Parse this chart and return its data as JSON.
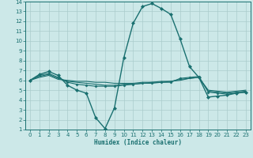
{
  "xlabel": "Humidex (Indice chaleur)",
  "background_color": "#cce8e8",
  "grid_color": "#aacccc",
  "line_color": "#1a7070",
  "xlim": [
    -0.5,
    23.5
  ],
  "ylim": [
    1,
    14
  ],
  "xticks": [
    0,
    1,
    2,
    3,
    4,
    5,
    6,
    7,
    8,
    9,
    10,
    11,
    12,
    13,
    14,
    15,
    16,
    17,
    18,
    19,
    20,
    21,
    22,
    23
  ],
  "yticks": [
    1,
    2,
    3,
    4,
    5,
    6,
    7,
    8,
    9,
    10,
    11,
    12,
    13,
    14
  ],
  "lines": [
    {
      "x": [
        0,
        1,
        2,
        3,
        4,
        5,
        6,
        7,
        8,
        9,
        10,
        11,
        12,
        13,
        14,
        15,
        16,
        17,
        18,
        19,
        20,
        21,
        22,
        23
      ],
      "y": [
        6.0,
        6.6,
        6.9,
        6.5,
        5.5,
        5.0,
        4.7,
        2.2,
        1.1,
        3.2,
        8.3,
        11.8,
        13.5,
        13.8,
        13.3,
        12.7,
        10.2,
        7.4,
        6.3,
        4.3,
        4.4,
        4.5,
        4.7,
        4.8
      ],
      "marker": "D",
      "markersize": 2.0,
      "linewidth": 1.0
    },
    {
      "x": [
        0,
        1,
        2,
        3,
        4,
        5,
        6,
        7,
        8,
        9,
        10,
        11,
        12,
        13,
        14,
        15,
        16,
        17,
        18,
        19,
        20,
        21,
        22,
        23
      ],
      "y": [
        6.0,
        6.5,
        6.7,
        6.3,
        5.8,
        5.6,
        5.5,
        5.4,
        5.4,
        5.4,
        5.5,
        5.6,
        5.7,
        5.7,
        5.8,
        5.8,
        6.2,
        6.3,
        6.4,
        4.8,
        4.7,
        4.6,
        4.7,
        4.8
      ],
      "marker": "D",
      "markersize": 1.5,
      "linewidth": 0.8
    },
    {
      "x": [
        0,
        1,
        2,
        3,
        4,
        5,
        6,
        7,
        8,
        9,
        10,
        11,
        12,
        13,
        14,
        15,
        16,
        17,
        18,
        19,
        20,
        21,
        22,
        23
      ],
      "y": [
        6.0,
        6.4,
        6.6,
        6.2,
        5.9,
        5.8,
        5.7,
        5.6,
        5.5,
        5.5,
        5.6,
        5.6,
        5.7,
        5.8,
        5.8,
        5.9,
        6.1,
        6.2,
        6.3,
        4.9,
        4.8,
        4.7,
        4.8,
        4.9
      ],
      "marker": null,
      "markersize": 0,
      "linewidth": 0.8
    },
    {
      "x": [
        0,
        1,
        2,
        3,
        4,
        5,
        6,
        7,
        8,
        9,
        10,
        11,
        12,
        13,
        14,
        15,
        16,
        17,
        18,
        19,
        20,
        21,
        22,
        23
      ],
      "y": [
        6.0,
        6.3,
        6.5,
        6.1,
        6.0,
        5.9,
        5.9,
        5.8,
        5.8,
        5.7,
        5.7,
        5.7,
        5.8,
        5.8,
        5.9,
        5.9,
        6.0,
        6.2,
        6.3,
        5.0,
        4.9,
        4.8,
        4.9,
        5.0
      ],
      "marker": null,
      "markersize": 0,
      "linewidth": 0.8
    }
  ]
}
